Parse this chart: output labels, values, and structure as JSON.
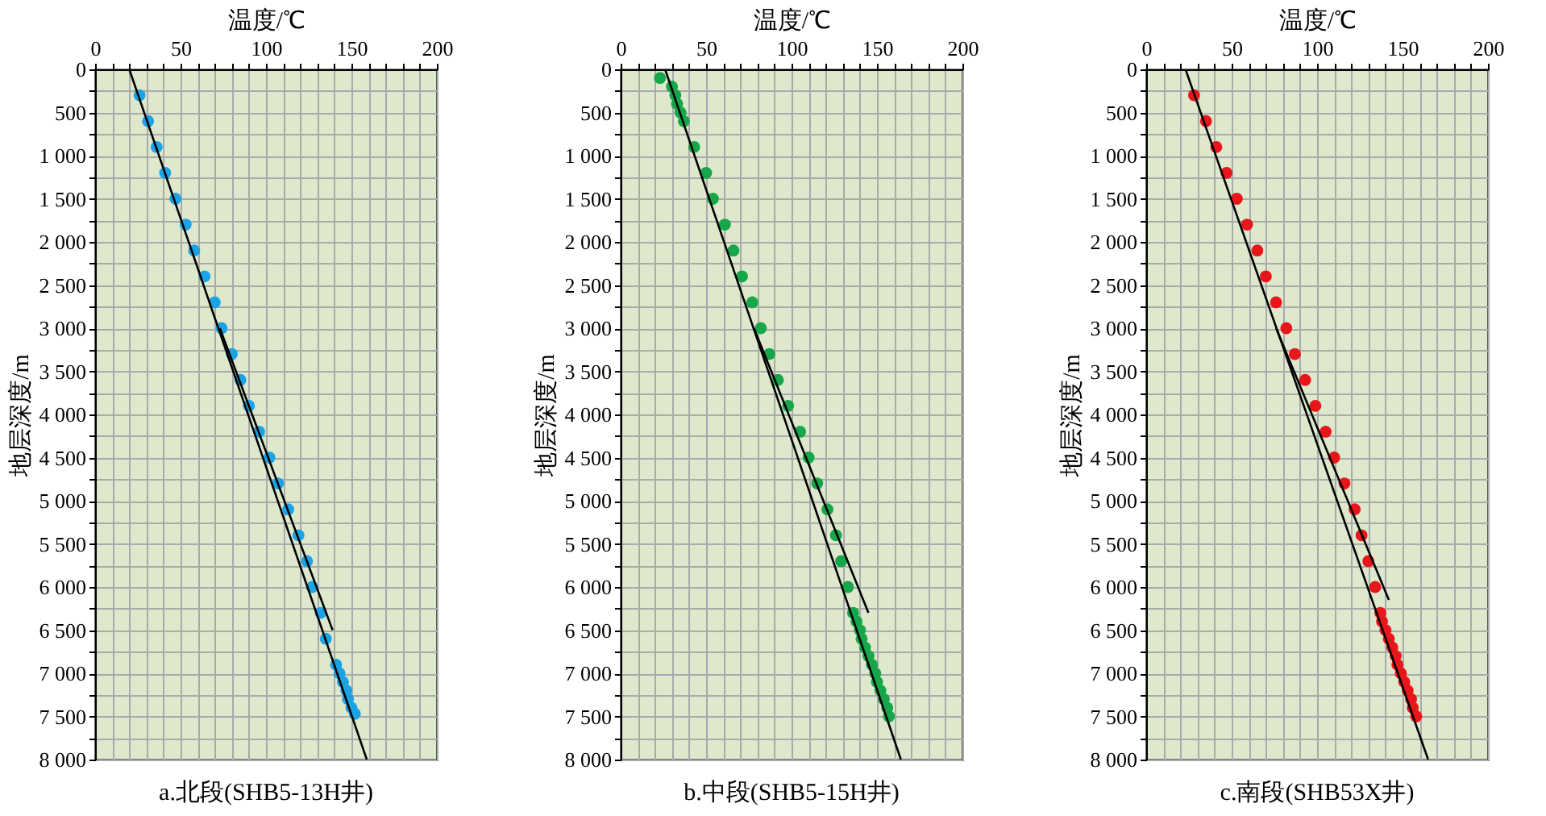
{
  "chart_data": [
    {
      "type": "scatter",
      "title": "a.北段(SHB5-13H井)",
      "xlabel": "温度/℃",
      "ylabel": "地层深度/m",
      "xlim": [
        0,
        200
      ],
      "ylim": [
        8000,
        0
      ],
      "grid": true,
      "xticks": [
        0,
        {
          "value": 10,
          "label": null
        },
        {
          "value": 20,
          "label": null
        },
        {
          "value": 30,
          "label": null
        },
        {
          "value": 40,
          "label": null
        },
        50,
        {
          "value": 60,
          "label": null
        },
        {
          "value": 70,
          "label": null
        },
        {
          "value": 80,
          "label": null
        },
        {
          "value": 90,
          "label": null
        },
        100,
        {
          "value": 110,
          "label": null
        },
        {
          "value": 120,
          "label": null
        },
        {
          "value": 130,
          "label": null
        },
        {
          "value": 140,
          "label": null
        },
        150,
        {
          "value": 160,
          "label": null
        },
        {
          "value": 170,
          "label": null
        },
        {
          "value": 180,
          "label": null
        },
        {
          "value": 190,
          "label": null
        },
        200
      ],
      "yticks": [
        0,
        {
          "value": 250,
          "label": null
        },
        500,
        {
          "value": 750,
          "label": null
        },
        {
          "value": 1000,
          "label": "1 000"
        },
        {
          "value": 1250,
          "label": null
        },
        {
          "value": 1500,
          "label": "1 500"
        },
        {
          "value": 1750,
          "label": null
        },
        {
          "value": 2000,
          "label": "2 000"
        },
        {
          "value": 2250,
          "label": null
        },
        {
          "value": 2500,
          "label": "2 500"
        },
        {
          "value": 2750,
          "label": null
        },
        {
          "value": 3000,
          "label": "3 000"
        },
        {
          "value": 3250,
          "label": null
        },
        {
          "value": 3500,
          "label": "3 500"
        },
        {
          "value": 3750,
          "label": null
        },
        {
          "value": 4000,
          "label": "4 000"
        },
        {
          "value": 4250,
          "label": null
        },
        {
          "value": 4500,
          "label": "4 500"
        },
        {
          "value": 4750,
          "label": null
        },
        {
          "value": 5000,
          "label": "5 000"
        },
        {
          "value": 5250,
          "label": null
        },
        {
          "value": 5500,
          "label": "5 500"
        },
        {
          "value": 5750,
          "label": null
        },
        {
          "value": 6000,
          "label": "6 000"
        },
        {
          "value": 6250,
          "label": null
        },
        {
          "value": 6500,
          "label": "6 500"
        },
        {
          "value": 6750,
          "label": null
        },
        {
          "value": 7000,
          "label": "7 000"
        },
        {
          "value": 7250,
          "label": null
        },
        {
          "value": 7500,
          "label": "7 500"
        },
        {
          "value": 7750,
          "label": null
        },
        {
          "value": 8000,
          "label": "8 000"
        }
      ],
      "series": [
        {
          "marker": "circle",
          "color": "#1ba3e6",
          "x": [
            26,
            31,
            36,
            41,
            47,
            53,
            58,
            64,
            70,
            74,
            80,
            85,
            90,
            96,
            102,
            107,
            113,
            119,
            124,
            127,
            132,
            135,
            141,
            143,
            145,
            147,
            148,
            150,
            152
          ],
          "values": [
            300,
            600,
            900,
            1200,
            1500,
            1800,
            2100,
            2400,
            2700,
            3000,
            3300,
            3600,
            3900,
            4200,
            4500,
            4800,
            5100,
            5400,
            5700,
            6000,
            6300,
            6600,
            6900,
            7000,
            7100,
            7200,
            7300,
            7400,
            7470
          ]
        },
        {
          "type": "line",
          "color": "#000000",
          "x": [
            20,
            159
          ],
          "values": [
            0,
            8000
          ]
        },
        {
          "type": "line",
          "color": "#000000",
          "x": [
            73,
            139
          ],
          "values": [
            3000,
            6500
          ]
        }
      ]
    },
    {
      "type": "scatter",
      "title": "b.中段(SHB5-15H井)",
      "xlabel": "温度/℃",
      "ylabel": "地层深度/m",
      "xlim": [
        0,
        200
      ],
      "ylim": [
        8000,
        0
      ],
      "grid": true,
      "xticks": [
        0,
        {
          "value": 10,
          "label": null
        },
        {
          "value": 20,
          "label": null
        },
        {
          "value": 30,
          "label": null
        },
        {
          "value": 40,
          "label": null
        },
        50,
        {
          "value": 60,
          "label": null
        },
        {
          "value": 70,
          "label": null
        },
        {
          "value": 80,
          "label": null
        },
        {
          "value": 90,
          "label": null
        },
        100,
        {
          "value": 110,
          "label": null
        },
        {
          "value": 120,
          "label": null
        },
        {
          "value": 130,
          "label": null
        },
        {
          "value": 140,
          "label": null
        },
        150,
        {
          "value": 160,
          "label": null
        },
        {
          "value": 170,
          "label": null
        },
        {
          "value": 180,
          "label": null
        },
        {
          "value": 190,
          "label": null
        },
        200
      ],
      "yticks": [
        0,
        {
          "value": 250,
          "label": null
        },
        500,
        {
          "value": 750,
          "label": null
        },
        {
          "value": 1000,
          "label": "1 000"
        },
        {
          "value": 1250,
          "label": null
        },
        {
          "value": 1500,
          "label": "1 500"
        },
        {
          "value": 1750,
          "label": null
        },
        {
          "value": 2000,
          "label": "2 000"
        },
        {
          "value": 2250,
          "label": null
        },
        {
          "value": 2500,
          "label": "2 500"
        },
        {
          "value": 2750,
          "label": null
        },
        {
          "value": 3000,
          "label": "3 000"
        },
        {
          "value": 3250,
          "label": null
        },
        {
          "value": 3500,
          "label": "3 500"
        },
        {
          "value": 3750,
          "label": null
        },
        {
          "value": 4000,
          "label": "4 000"
        },
        {
          "value": 4250,
          "label": null
        },
        {
          "value": 4500,
          "label": "4 500"
        },
        {
          "value": 4750,
          "label": null
        },
        {
          "value": 5000,
          "label": "5 000"
        },
        {
          "value": 5250,
          "label": null
        },
        {
          "value": 5500,
          "label": "5 500"
        },
        {
          "value": 5750,
          "label": null
        },
        {
          "value": 6000,
          "label": "6 000"
        },
        {
          "value": 6250,
          "label": null
        },
        {
          "value": 6500,
          "label": "6 500"
        },
        {
          "value": 6750,
          "label": null
        },
        {
          "value": 7000,
          "label": "7 000"
        },
        {
          "value": 7250,
          "label": null
        },
        {
          "value": 7500,
          "label": "7 500"
        },
        {
          "value": 7750,
          "label": null
        },
        {
          "value": 8000,
          "label": "8 000"
        }
      ],
      "series": [
        {
          "marker": "circle",
          "color": "#17a64a",
          "x": [
            23,
            30,
            32,
            33,
            35,
            37,
            43,
            50,
            54,
            61,
            66,
            71,
            77,
            82,
            87,
            92,
            98,
            105,
            110,
            115,
            121,
            126,
            129,
            133,
            136,
            138,
            140,
            141,
            143,
            145,
            147,
            149,
            150,
            152,
            154,
            156,
            157
          ],
          "values": [
            100,
            200,
            300,
            400,
            500,
            600,
            900,
            1200,
            1500,
            1800,
            2100,
            2400,
            2700,
            3000,
            3300,
            3600,
            3900,
            4200,
            4500,
            4800,
            5100,
            5400,
            5700,
            6000,
            6300,
            6400,
            6500,
            6600,
            6700,
            6800,
            6900,
            7000,
            7100,
            7200,
            7300,
            7400,
            7500
          ]
        },
        {
          "type": "line",
          "color": "#000000",
          "x": [
            26,
            164
          ],
          "values": [
            0,
            8000
          ]
        },
        {
          "type": "line",
          "color": "#000000",
          "x": [
            78,
            145
          ],
          "values": [
            3000,
            6300
          ]
        }
      ]
    },
    {
      "type": "scatter",
      "title": "c.南段(SHB53X井)",
      "xlabel": "温度/℃",
      "ylabel": "地层深度/m",
      "xlim": [
        0,
        200
      ],
      "ylim": [
        8000,
        0
      ],
      "grid": true,
      "xticks": [
        0,
        {
          "value": 10,
          "label": null
        },
        {
          "value": 20,
          "label": null
        },
        {
          "value": 30,
          "label": null
        },
        {
          "value": 40,
          "label": null
        },
        50,
        {
          "value": 60,
          "label": null
        },
        {
          "value": 70,
          "label": null
        },
        {
          "value": 80,
          "label": null
        },
        {
          "value": 90,
          "label": null
        },
        100,
        {
          "value": 110,
          "label": null
        },
        {
          "value": 120,
          "label": null
        },
        {
          "value": 130,
          "label": null
        },
        {
          "value": 140,
          "label": null
        },
        150,
        {
          "value": 160,
          "label": null
        },
        {
          "value": 170,
          "label": null
        },
        {
          "value": 180,
          "label": null
        },
        {
          "value": 190,
          "label": null
        },
        200
      ],
      "yticks": [
        0,
        {
          "value": 250,
          "label": null
        },
        500,
        {
          "value": 750,
          "label": null
        },
        {
          "value": 1000,
          "label": "1 000"
        },
        {
          "value": 1250,
          "label": null
        },
        {
          "value": 1500,
          "label": "1 500"
        },
        {
          "value": 1750,
          "label": null
        },
        {
          "value": 2000,
          "label": "2 000"
        },
        {
          "value": 2250,
          "label": null
        },
        {
          "value": 2500,
          "label": "2 500"
        },
        {
          "value": 2750,
          "label": null
        },
        {
          "value": 3000,
          "label": "3 000"
        },
        {
          "value": 3250,
          "label": null
        },
        {
          "value": 3500,
          "label": "3 500"
        },
        {
          "value": 3750,
          "label": null
        },
        {
          "value": 4000,
          "label": "4 000"
        },
        {
          "value": 4250,
          "label": null
        },
        {
          "value": 4500,
          "label": "4 500"
        },
        {
          "value": 4750,
          "label": null
        },
        {
          "value": 5000,
          "label": "5 000"
        },
        {
          "value": 5250,
          "label": null
        },
        {
          "value": 5500,
          "label": "5 500"
        },
        {
          "value": 5750,
          "label": null
        },
        {
          "value": 6000,
          "label": "6 000"
        },
        {
          "value": 6250,
          "label": null
        },
        {
          "value": 6500,
          "label": "6 500"
        },
        {
          "value": 6750,
          "label": null
        },
        {
          "value": 7000,
          "label": "7 000"
        },
        {
          "value": 7250,
          "label": null
        },
        {
          "value": 7500,
          "label": "7 500"
        },
        {
          "value": 7750,
          "label": null
        },
        {
          "value": 8000,
          "label": "8 000"
        }
      ],
      "series": [
        {
          "marker": "circle",
          "color": "#e8161b",
          "x": [
            28,
            35,
            41,
            47,
            53,
            59,
            65,
            70,
            76,
            82,
            87,
            93,
            99,
            105,
            110,
            116,
            122,
            126,
            130,
            134,
            137,
            138,
            140,
            142,
            144,
            146,
            147,
            149,
            151,
            153,
            155,
            156,
            158
          ],
          "values": [
            300,
            600,
            900,
            1200,
            1500,
            1800,
            2100,
            2400,
            2700,
            3000,
            3300,
            3600,
            3900,
            4200,
            4500,
            4800,
            5100,
            5400,
            5700,
            6000,
            6300,
            6400,
            6500,
            6600,
            6700,
            6800,
            6900,
            7000,
            7100,
            7200,
            7300,
            7400,
            7500
          ]
        },
        {
          "type": "line",
          "color": "#000000",
          "x": [
            23,
            165
          ],
          "values": [
            0,
            8000
          ]
        },
        {
          "type": "line",
          "color": "#000000",
          "x": [
            76,
            142
          ],
          "values": [
            3000,
            6150
          ]
        }
      ]
    }
  ]
}
